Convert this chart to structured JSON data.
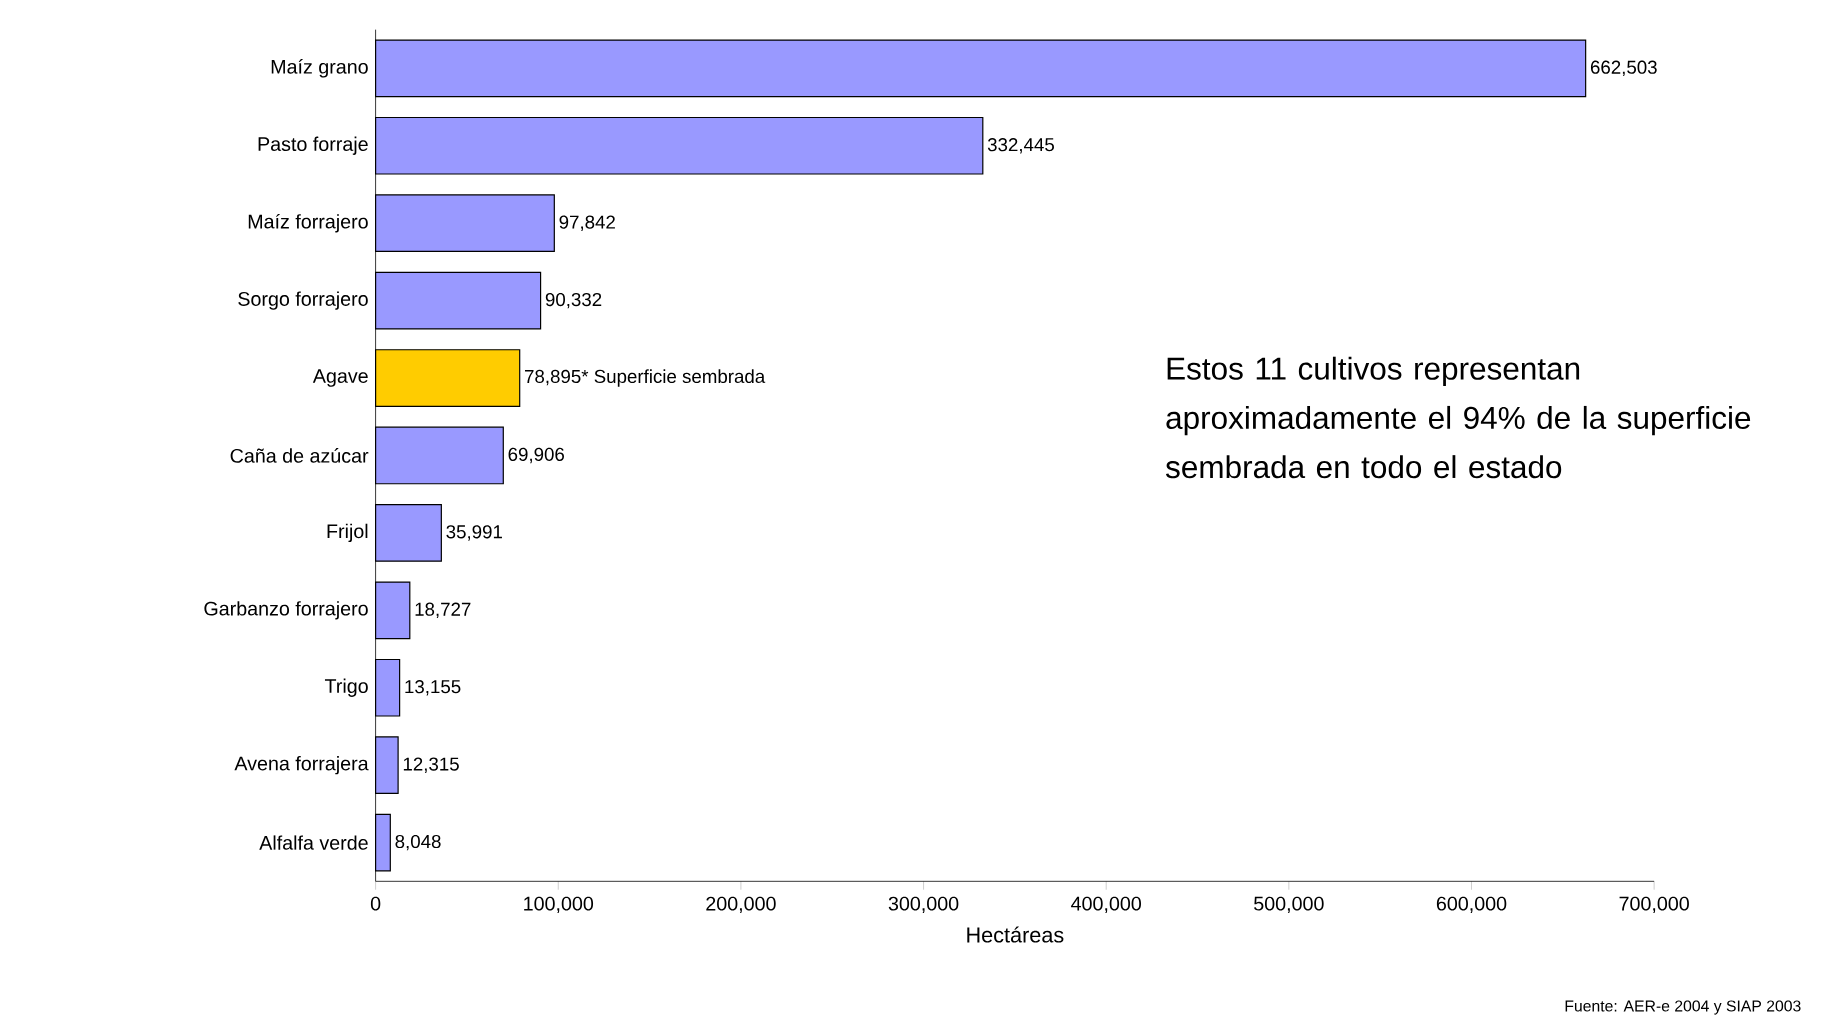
{
  "chart_data": {
    "type": "bar",
    "orientation": "horizontal",
    "xlabel": "Hectáreas",
    "categories": [
      "Maíz grano",
      "Pasto forraje",
      "Maíz forrajero",
      "Sorgo forrajero",
      "Agave",
      "Caña de azúcar",
      "Frijol",
      "Garbanzo forrajero",
      "Trigo",
      "Avena forrajera",
      "Alfalfa verde"
    ],
    "values": [
      662503,
      332445,
      97842,
      90332,
      78895,
      69906,
      35991,
      18727,
      13155,
      12315,
      8048
    ],
    "colors": [
      "#9999ff",
      "#9999ff",
      "#9999ff",
      "#9999ff",
      "#ffcc00",
      "#9999ff",
      "#9999ff",
      "#9999ff",
      "#9999ff",
      "#9999ff",
      "#9999ff"
    ],
    "value_labels": [
      "662,503",
      "332,445",
      "97,842",
      "90,332",
      "78,895* Superficie sembrada",
      "69,906",
      "35,991",
      "18,727",
      "13,155",
      "12,315",
      "8,048"
    ],
    "xlim": [
      0,
      700000
    ],
    "xticks": [
      {
        "value": 0,
        "label": "0"
      },
      {
        "value": 100000,
        "label": "100,000"
      },
      {
        "value": 200000,
        "label": "200,000"
      },
      {
        "value": 300000,
        "label": "300,000"
      },
      {
        "value": 400000,
        "label": "400,000"
      },
      {
        "value": 500000,
        "label": "500,000"
      },
      {
        "value": 600000,
        "label": "600,000"
      },
      {
        "value": 700000,
        "label": "700,000"
      }
    ],
    "grid": false,
    "annotations": [
      "Estos 11 cultivos representan aproximadamente el 94% de la superficie  sembrada en todo el estado",
      "Fuente: AER-e 2004 y SIAP 2003"
    ]
  }
}
